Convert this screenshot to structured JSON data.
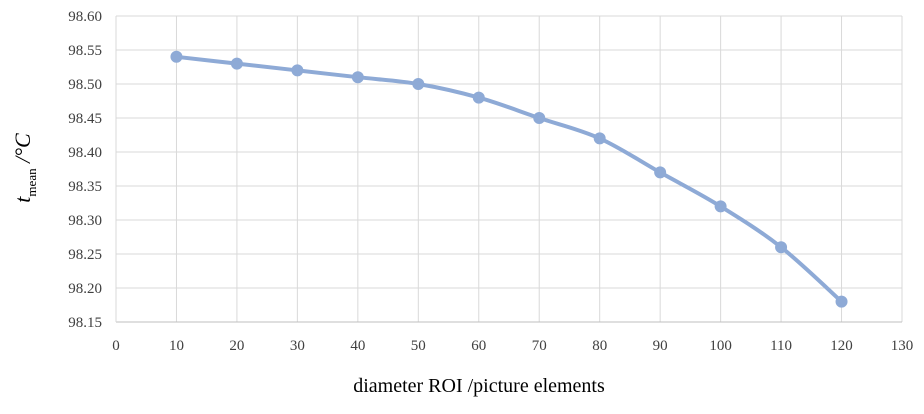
{
  "chart_data": {
    "type": "line",
    "title": "",
    "xlabel": "diameter ROI /picture elements",
    "ylabel": {
      "main": "t",
      "subscript": "mean",
      "unit": " /°C"
    },
    "xlim": [
      0,
      130
    ],
    "ylim": [
      98.15,
      98.6
    ],
    "x_ticks": [
      "0",
      "10",
      "20",
      "30",
      "40",
      "50",
      "60",
      "70",
      "80",
      "90",
      "100",
      "110",
      "120",
      "130"
    ],
    "y_ticks": [
      "98.15",
      "98.20",
      "98.25",
      "98.30",
      "98.35",
      "98.40",
      "98.45",
      "98.50",
      "98.55",
      "98.60"
    ],
    "grid": true,
    "legend": "none",
    "series": [
      {
        "x": [
          10,
          20,
          30,
          40,
          50,
          60,
          70,
          80,
          90,
          100,
          110,
          120
        ],
        "y": [
          98.54,
          98.53,
          98.52,
          98.51,
          98.5,
          98.48,
          98.45,
          98.42,
          98.37,
          98.32,
          98.26,
          98.18
        ],
        "color": "#8eaad6",
        "smooth": true,
        "markers": true
      }
    ]
  }
}
